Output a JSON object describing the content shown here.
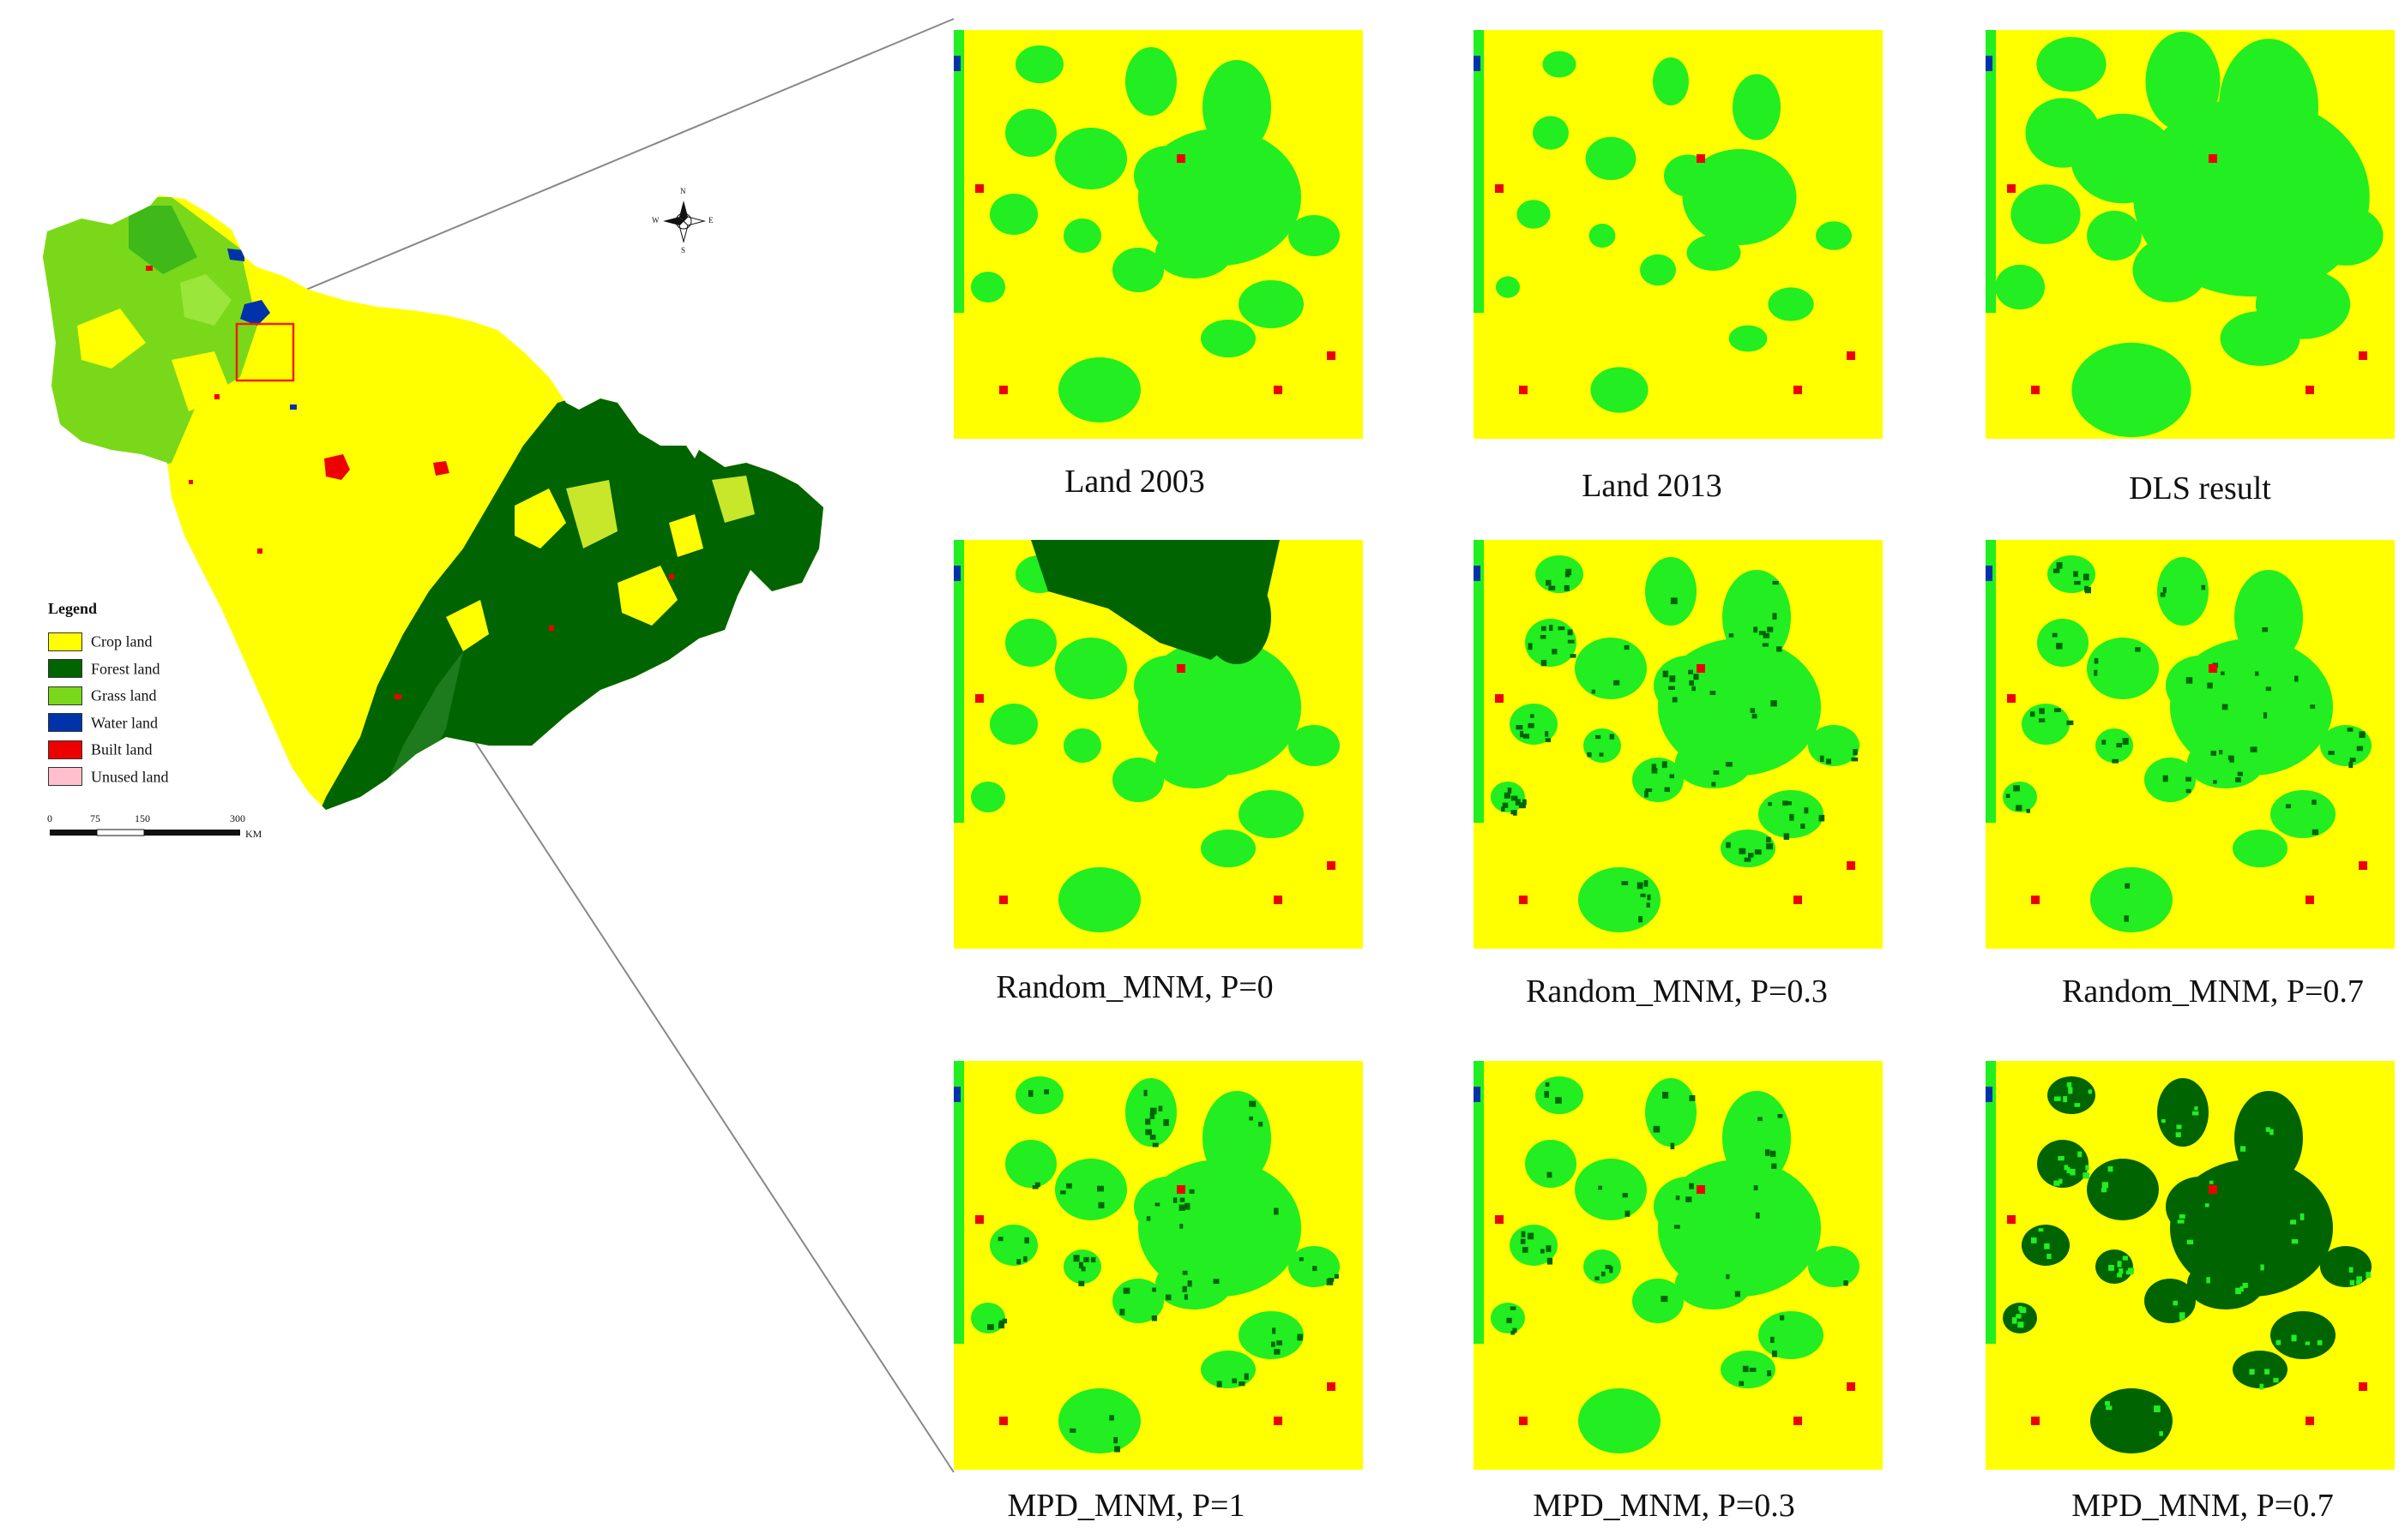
{
  "colors": {
    "crop": "#ffff00",
    "forest": "#006400",
    "grass": "#22ee22",
    "grass_light": "#7ad81a",
    "water": "#0033aa",
    "built": "#ee0000",
    "unused": "#ffc0cb",
    "frame_line": "#888888",
    "highlight_box": "#ee2200"
  },
  "legend": {
    "title": "Legend",
    "items": [
      {
        "label": "Crop land",
        "color": "#ffff00"
      },
      {
        "label": "Forest land",
        "color": "#006400"
      },
      {
        "label": "Grass land",
        "color": "#7ad81a"
      },
      {
        "label": "Water land",
        "color": "#0033aa"
      },
      {
        "label": "Built  land",
        "color": "#ee0000"
      },
      {
        "label": "Unused land",
        "color": "#ffc0cb"
      }
    ]
  },
  "scale_bar": {
    "ticks": [
      "0",
      "75",
      "150",
      "300"
    ],
    "unit": "KM"
  },
  "compass": {
    "n": "N",
    "s": "S",
    "e": "E",
    "w": "W"
  },
  "panels": [
    {
      "caption": "Land 2003",
      "variant": "base"
    },
    {
      "caption": "Land 2013",
      "variant": "sparse"
    },
    {
      "caption": "DLS result",
      "variant": "dls"
    },
    {
      "caption": "Random_MNM, P=0",
      "variant": "rand0"
    },
    {
      "caption": "Random_MNM, P=0.3",
      "variant": "rand03"
    },
    {
      "caption": "Random_MNM, P=0.7",
      "variant": "rand07"
    },
    {
      "caption": "MPD_MNM, P=1",
      "variant": "mpd1"
    },
    {
      "caption": "MPD_MNM, P=0.3",
      "variant": "mpd03"
    },
    {
      "caption": "MPD_MNM, P=0.7",
      "variant": "mpd07"
    }
  ]
}
